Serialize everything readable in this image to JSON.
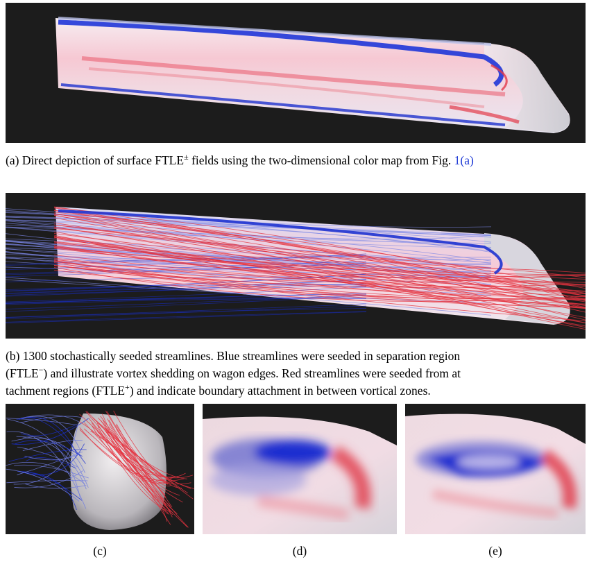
{
  "figure": {
    "panel_a": {
      "caption_label": "(a)",
      "caption_text": "Direct depiction of surface FTLE",
      "caption_sup": "±",
      "caption_text2": " fields using the two-dimensional color map from Fig. ",
      "caption_link": "1(a)"
    },
    "panel_b": {
      "caption_label": "(b)",
      "caption_line1": "1300 stochastically seeded streamlines. Blue streamlines were seeded in separation region",
      "caption_line2_pre": "(FTLE",
      "caption_line2_sup": "−",
      "caption_line2_post": ") and illustrate vortex shedding on wagon edges. Red streamlines were seeded from at",
      "caption_line3_pre": "tachment regions (FTLE",
      "caption_line3_sup": "+",
      "caption_line3_post": ") and indicate boundary attachment in between vortical zones."
    },
    "sub_labels": {
      "c": "(c)",
      "d": "(d)",
      "e": "(e)"
    },
    "colors": {
      "background": "#1c1c1c",
      "separation_blue": "#1a2fd0",
      "attachment_red": "#e4333f",
      "surface": "#f2dde3"
    }
  }
}
